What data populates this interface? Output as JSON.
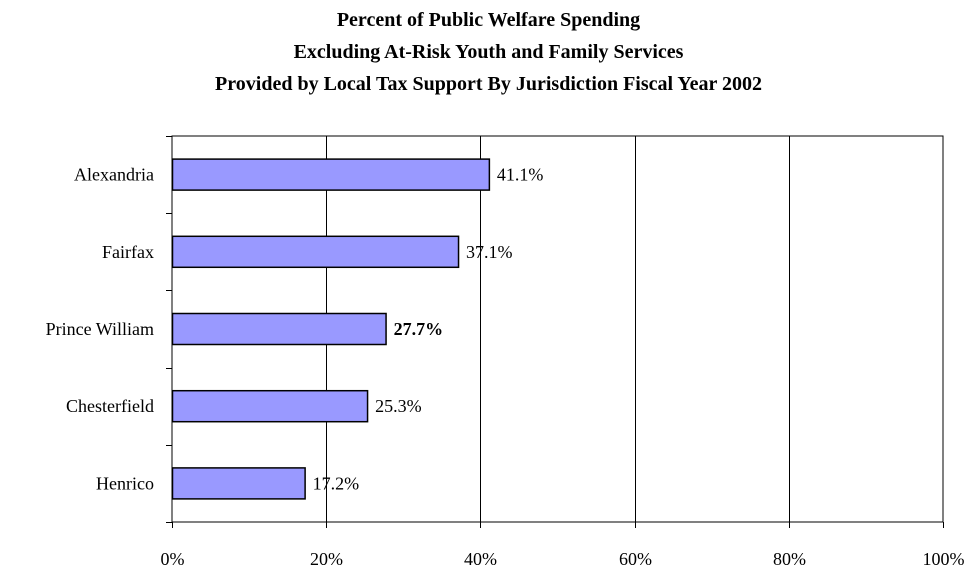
{
  "chart_data": {
    "type": "bar",
    "orientation": "horizontal",
    "title": [
      "Percent of Public Welfare Spending",
      "Excluding At-Risk Youth and Family Services",
      "Provided by Local Tax Support By Jurisdiction Fiscal Year 2002"
    ],
    "categories": [
      "Alexandria",
      "Fairfax",
      "Prince William",
      "Chesterfield",
      "Henrico"
    ],
    "values": [
      41.1,
      37.1,
      27.7,
      25.3,
      17.2
    ],
    "data_labels": [
      "41.1%",
      "37.1%",
      "27.7%",
      "25.3%",
      "17.2%"
    ],
    "highlighted_category": "Prince William",
    "xlim": [
      0,
      100
    ],
    "x_ticks": [
      0,
      20,
      40,
      60,
      80,
      100
    ],
    "x_tick_labels": [
      "0%",
      "20%",
      "40%",
      "60%",
      "80%",
      "100%"
    ],
    "xlabel": "",
    "ylabel": "",
    "grid": "vertical",
    "legend": "none",
    "colors": {
      "bar_fill": "#9999ff",
      "bar_stroke": "#000000",
      "grid": "#000000",
      "background": "#ffffff"
    }
  }
}
